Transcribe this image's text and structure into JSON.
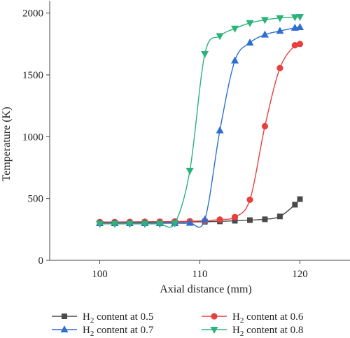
{
  "chart_data": {
    "type": "line",
    "xlabel": "Axial distance (mm)",
    "ylabel": "Temperature (K)",
    "xlim": [
      95,
      125
    ],
    "ylim": [
      0,
      2100
    ],
    "xticks": [
      100,
      110,
      120
    ],
    "yticks": [
      0,
      500,
      1000,
      1500,
      2000
    ],
    "xtick_labels": [
      "100",
      "110",
      "120"
    ],
    "ytick_labels": [
      "0",
      "500",
      "1000",
      "1500",
      "2000"
    ],
    "grid": false,
    "legend_position": "bottom",
    "series": [
      {
        "name": "H2 content at 0.5",
        "legend_text": [
          "H",
          "2",
          " content at 0.5"
        ],
        "color": "#4a4a4a",
        "marker": "square",
        "points": [
          [
            100,
            305
          ],
          [
            101.5,
            305
          ],
          [
            103,
            306
          ],
          [
            104.5,
            307
          ],
          [
            106,
            308
          ],
          [
            107.5,
            309
          ],
          [
            109,
            310
          ],
          [
            110.5,
            312
          ],
          [
            112,
            315
          ],
          [
            113.5,
            320
          ],
          [
            115,
            325
          ],
          [
            116.5,
            332
          ],
          [
            118,
            355
          ],
          [
            119.5,
            450
          ],
          [
            120,
            495
          ]
        ]
      },
      {
        "name": "H2 content at 0.6",
        "legend_text": [
          "H",
          "2",
          " content at 0.6"
        ],
        "color": "#e8403e",
        "marker": "circle",
        "points": [
          [
            100,
            310
          ],
          [
            101.5,
            310
          ],
          [
            103,
            311
          ],
          [
            104.5,
            312
          ],
          [
            106,
            313
          ],
          [
            107.5,
            314
          ],
          [
            109,
            316
          ],
          [
            110.5,
            320
          ],
          [
            112,
            330
          ],
          [
            113.5,
            350
          ],
          [
            115,
            490
          ],
          [
            116.5,
            1085
          ],
          [
            118,
            1555
          ],
          [
            119.5,
            1740
          ],
          [
            120,
            1750
          ]
        ]
      },
      {
        "name": "H2 content at 0.7",
        "legend_text": [
          "H",
          "2",
          " content at 0.7"
        ],
        "color": "#2d6fd1",
        "marker": "triangle-up",
        "points": [
          [
            100,
            300
          ],
          [
            101.5,
            300
          ],
          [
            103,
            300
          ],
          [
            104.5,
            300
          ],
          [
            106,
            300
          ],
          [
            107.5,
            300
          ],
          [
            109,
            302
          ],
          [
            110.5,
            330
          ],
          [
            112,
            1050
          ],
          [
            113.5,
            1615
          ],
          [
            115,
            1760
          ],
          [
            116.5,
            1825
          ],
          [
            118,
            1855
          ],
          [
            119.5,
            1880
          ],
          [
            120,
            1885
          ]
        ]
      },
      {
        "name": "H2 content at 0.8",
        "legend_text": [
          "H",
          "2",
          " content at 0.8"
        ],
        "color": "#2bb37a",
        "marker": "triangle-down",
        "points": [
          [
            100,
            295
          ],
          [
            101.5,
            295
          ],
          [
            103,
            295
          ],
          [
            104.5,
            295
          ],
          [
            106,
            295
          ],
          [
            107.5,
            300
          ],
          [
            109,
            725
          ],
          [
            110.5,
            1670
          ],
          [
            112,
            1815
          ],
          [
            113.5,
            1875
          ],
          [
            115,
            1920
          ],
          [
            116.5,
            1945
          ],
          [
            118,
            1960
          ],
          [
            119.5,
            1968
          ],
          [
            120,
            1970
          ]
        ]
      }
    ]
  }
}
